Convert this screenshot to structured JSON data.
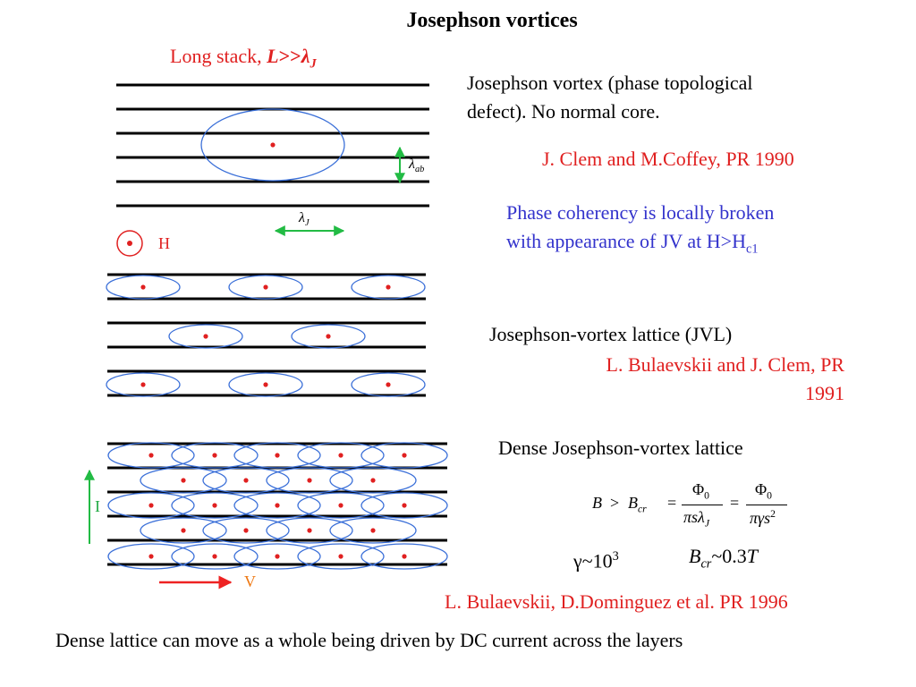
{
  "title": "Josephson vortices",
  "long_stack": {
    "prefix": "Long stack, ",
    "L": "L",
    "gg": ">>",
    "lambda": "λ",
    "sub": "J"
  },
  "labels": {
    "lambda_ab": "λ",
    "lambda_ab_sub": "ab",
    "lambda_J": "λ",
    "lambda_J_sub": "J",
    "H": "H",
    "I": "I",
    "V": "V"
  },
  "blocks": {
    "vortex_line1": "Josephson vortex (phase topological",
    "vortex_line2": "defect).  No normal core.",
    "clem_coffey": "J. Clem and M.Coffey, PR 1990",
    "phase_line1": "Phase coherency is locally broken",
    "phase_line2_pre": "with appearance of JV at H>H",
    "phase_line2_sub": "c1",
    "jvl": "Josephson-vortex lattice (JVL)",
    "bulaevskii_line1": "L. Bulaevskii and J. Clem, PR",
    "bulaevskii_line2": "1991",
    "dense": "Dense Josephson-vortex lattice",
    "gamma_pre": "γ~10",
    "gamma_sup": "3",
    "bcr_B": "B",
    "bcr_sub": "cr",
    "bcr_val": "~0.3",
    "bcr_T": "T",
    "dominguez": "L. Bulaevskii, D.Dominguez et al. PR 1996",
    "bottom": "Dense lattice can move as a whole being driven by DC current across the layers"
  },
  "formula": {
    "B": "B",
    "gt": ">",
    "Bcr": "B",
    "cr": "cr",
    "eq1": "=",
    "eq2": "=",
    "phi0_a": "Φ",
    "phi0_a_sub": "0",
    "phi0_b": "Φ",
    "phi0_b_sub": "0",
    "den1": "πsλ",
    "den1_sub": "J",
    "den2": "πγs",
    "den2_sup": "2"
  },
  "colors": {
    "ellipse": "#3a6fd8",
    "dot": "#e02020",
    "arrow_green": "#22bb44",
    "arrow_red": "#ee2222",
    "line": "#000000"
  }
}
